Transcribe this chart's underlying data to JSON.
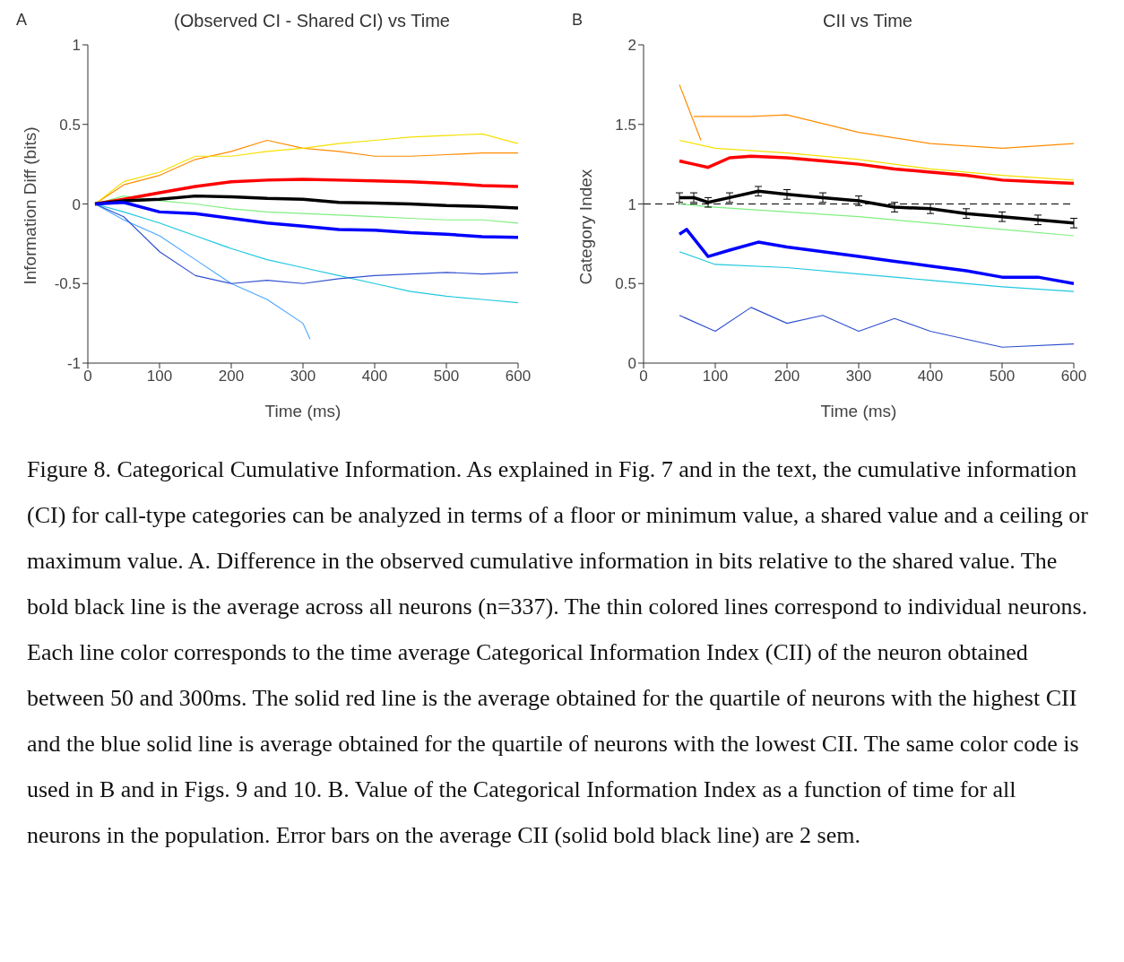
{
  "chart_data": [
    {
      "type": "line",
      "title": "(Observed CI - Shared CI) vs Time",
      "xlabel": "Time (ms)",
      "ylabel": "Information Diff (bits)",
      "xlim": [
        0,
        600
      ],
      "xticks": [
        0,
        100,
        200,
        300,
        400,
        500,
        600
      ],
      "ylim": [
        -1,
        1
      ],
      "yticks": [
        -1,
        -0.5,
        0,
        0.5,
        1
      ],
      "marker": "none",
      "annotations": [
        "A",
        "Figure 8. Categorical Cumulative Information. As explained in Fig. 7 and in the text, the cumulative information (CI) for call-type categories can be analyzed in terms of a floor or minimum value, a shared value and a ceiling or maximum value. A. Difference in the observed cumulative information in bits relative to the shared value. The bold black line is the average across all neurons (n=337). The thin colored lines correspond to individual neurons. Each line color corresponds to the time average Categorical Information Index (CII) of the neuron obtained between 50 and 300ms. The solid red line is the average obtained for the quartile of neurons with the highest CII and the blue solid line is average obtained for the quartile of neurons with the lowest CII. The same color code is used in B and in Figs. 9 and 10. B. Value of the Categorical Information Index as a function of time for all neurons in the population.  Error bars on the average CII (solid bold black line)  are 2 sem."
      ],
      "series": [
        {
          "color": "#ff8c00",
          "x": [
            10,
            50,
            100,
            150,
            200,
            250,
            300,
            350,
            400,
            450,
            500,
            550,
            600
          ],
          "values": [
            0,
            0.12,
            0.18,
            0.28,
            0.33,
            0.4,
            0.35,
            0.33,
            0.3,
            0.3,
            0.31,
            0.32,
            0.32
          ]
        },
        {
          "color": "#f5e000",
          "x": [
            10,
            50,
            100,
            150,
            200,
            250,
            300,
            350,
            400,
            450,
            500,
            550,
            600
          ],
          "values": [
            0,
            0.14,
            0.2,
            0.3,
            0.3,
            0.33,
            0.35,
            0.38,
            0.4,
            0.42,
            0.43,
            0.44,
            0.38
          ]
        },
        {
          "color": "#7fef7f",
          "x": [
            10,
            50,
            100,
            150,
            200,
            250,
            300,
            350,
            400,
            450,
            500,
            550,
            600
          ],
          "values": [
            0,
            0.05,
            0.02,
            0,
            -0.03,
            -0.05,
            -0.06,
            -0.07,
            -0.08,
            -0.09,
            -0.1,
            -0.1,
            -0.12
          ]
        },
        {
          "color": "#20c8e0",
          "x": [
            10,
            50,
            100,
            150,
            200,
            250,
            300,
            350,
            400,
            450,
            500,
            550,
            600
          ],
          "values": [
            0,
            -0.05,
            -0.12,
            -0.2,
            -0.28,
            -0.35,
            -0.4,
            -0.45,
            -0.5,
            -0.55,
            -0.58,
            -0.6,
            -0.62
          ]
        },
        {
          "color": "#4fa8ff",
          "x": [
            10,
            50,
            100,
            150,
            200,
            250,
            300,
            310
          ],
          "values": [
            0,
            -0.1,
            -0.2,
            -0.35,
            -0.5,
            -0.6,
            -0.75,
            -0.85
          ]
        },
        {
          "color": "#3050d0",
          "x": [
            10,
            50,
            100,
            150,
            200,
            250,
            300,
            350,
            400,
            450,
            500,
            550,
            600
          ],
          "values": [
            0,
            -0.08,
            -0.3,
            -0.45,
            -0.5,
            -0.48,
            -0.5,
            -0.47,
            -0.45,
            -0.44,
            -0.43,
            -0.44,
            -0.43
          ]
        },
        {
          "color": "#ff0000",
          "x": [
            10,
            50,
            100,
            150,
            200,
            250,
            300,
            350,
            400,
            450,
            500,
            550,
            600
          ],
          "values": [
            0,
            0.03,
            0.07,
            0.11,
            0.14,
            0.15,
            0.155,
            0.15,
            0.145,
            0.14,
            0.13,
            0.115,
            0.11
          ]
        },
        {
          "color": "#000000",
          "x": [
            10,
            50,
            100,
            150,
            200,
            250,
            300,
            350,
            400,
            450,
            500,
            550,
            600
          ],
          "values": [
            0,
            0.02,
            0.03,
            0.05,
            0.045,
            0.035,
            0.03,
            0.01,
            0.005,
            0,
            -0.01,
            -0.015,
            -0.025
          ]
        },
        {
          "color": "#0000ff",
          "x": [
            10,
            50,
            100,
            150,
            200,
            250,
            300,
            350,
            400,
            450,
            500,
            550,
            600
          ],
          "values": [
            0,
            0.01,
            -0.05,
            -0.06,
            -0.09,
            -0.12,
            -0.14,
            -0.16,
            -0.165,
            -0.18,
            -0.19,
            -0.205,
            -0.21
          ]
        }
      ]
    },
    {
      "type": "line",
      "title": "CII vs Time",
      "xlabel": "Time (ms)",
      "ylabel": "Category Index",
      "xlim": [
        0,
        600
      ],
      "xticks": [
        0,
        100,
        200,
        300,
        400,
        500,
        600
      ],
      "ylim": [
        0,
        2
      ],
      "yticks": [
        0,
        0.5,
        1,
        1.5,
        2
      ],
      "marker": "none",
      "annotations": [
        "B"
      ],
      "ref_lines": [
        {
          "axis": "y",
          "value": 1,
          "color": "#000000",
          "line_style": "dashed"
        }
      ],
      "series": [
        {
          "color": "#ff8c00",
          "x": [
            50,
            80
          ],
          "values": [
            1.75,
            1.4
          ]
        },
        {
          "color": "#ff8c00",
          "x": [
            70,
            150,
            200,
            300,
            400,
            500,
            600
          ],
          "values": [
            1.55,
            1.55,
            1.56,
            1.45,
            1.38,
            1.35,
            1.38
          ]
        },
        {
          "color": "#f5e000",
          "x": [
            50,
            100,
            200,
            300,
            400,
            500,
            600
          ],
          "values": [
            1.4,
            1.35,
            1.32,
            1.28,
            1.22,
            1.18,
            1.15
          ]
        },
        {
          "color": "#7fef7f",
          "x": [
            50,
            100,
            200,
            300,
            400,
            500,
            600
          ],
          "values": [
            1,
            0.98,
            0.95,
            0.92,
            0.88,
            0.84,
            0.8
          ]
        },
        {
          "color": "#20c8e0",
          "x": [
            50,
            100,
            200,
            300,
            400,
            500,
            600
          ],
          "values": [
            0.7,
            0.62,
            0.6,
            0.56,
            0.52,
            0.48,
            0.45
          ]
        },
        {
          "color": "#3050d0",
          "x": [
            50,
            100,
            150,
            200,
            250,
            300,
            350,
            400,
            500,
            600
          ],
          "values": [
            0.3,
            0.2,
            0.35,
            0.25,
            0.3,
            0.2,
            0.28,
            0.2,
            0.1,
            0.12
          ]
        },
        {
          "color": "#ff0000",
          "x": [
            50,
            70,
            90,
            120,
            150,
            200,
            250,
            300,
            350,
            400,
            450,
            500,
            550,
            600
          ],
          "values": [
            1.27,
            1.25,
            1.23,
            1.29,
            1.3,
            1.29,
            1.27,
            1.25,
            1.22,
            1.2,
            1.18,
            1.15,
            1.14,
            1.13
          ]
        },
        {
          "color": "#000000",
          "x": [
            50,
            70,
            90,
            120,
            160,
            200,
            250,
            300,
            350,
            400,
            450,
            500,
            550,
            600
          ],
          "values": [
            1.04,
            1.04,
            1.01,
            1.04,
            1.08,
            1.06,
            1.04,
            1.02,
            0.98,
            0.97,
            0.94,
            0.92,
            0.9,
            0.88
          ],
          "errors": [
            0.03,
            0.03,
            0.03,
            0.03,
            0.03,
            0.03,
            0.03,
            0.03,
            0.03,
            0.03,
            0.03,
            0.03,
            0.03,
            0.03
          ]
        },
        {
          "color": "#0000ff",
          "x": [
            50,
            60,
            90,
            120,
            160,
            200,
            250,
            300,
            350,
            400,
            450,
            500,
            550,
            600
          ],
          "values": [
            0.81,
            0.84,
            0.67,
            0.71,
            0.76,
            0.73,
            0.7,
            0.67,
            0.64,
            0.61,
            0.58,
            0.54,
            0.54,
            0.5
          ]
        }
      ]
    }
  ]
}
